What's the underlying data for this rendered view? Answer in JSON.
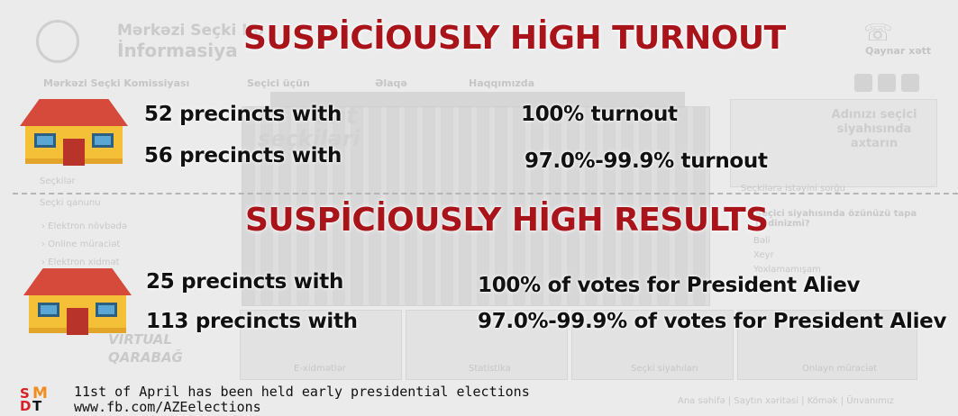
{
  "background": {
    "org_name_line1": "Mərkəzi Seçki Ko",
    "org_name_line2": "İnformasiya",
    "hotline_label": "Qaynar xətt",
    "nav": [
      "Mərkəzi Seçki Komissiyası",
      "Seçici üçün",
      "Əlaqə",
      "Haqqımızda"
    ],
    "ghost_word_1": "ent",
    "ghost_word_2": "seçkiləri",
    "side_box_text": "Adınızı seçici siyahısında axtarın",
    "side_caption": "Seçkilərə istəyini sorğu",
    "left_links": [
      "Seçkilər",
      "Seçki qanunu",
      "› Elektron növbədə",
      "› Online müraciət",
      "› Elektron xidmət"
    ],
    "poll_title": "Seçici siyahısında özünüzü tapa bildinizmi?",
    "poll_options": [
      "Bəli",
      "Xeyr",
      "Yoxlamamışam"
    ],
    "virtual_text_1": "VIRTUAL",
    "virtual_text_2": "QARABAĞ",
    "tile_labels": [
      "E-xidmətlər",
      "Statistika",
      "Seçki siyahıları",
      "Onlayn müraciət"
    ],
    "footer_links": "Ana səhifə  |  Saytın xəritəsi  |  Kömək  |  Ünvanımız"
  },
  "sections": {
    "turnout": {
      "title": "SUSPİCİOUSLY HİGH TURNOUT",
      "rows": [
        {
          "count_text": "52 precincts with",
          "value_text": "100% turnout"
        },
        {
          "count_text": "56 precincts with",
          "value_text": "97.0%-99.9% turnout"
        }
      ]
    },
    "results": {
      "title": "SUSPİCİOUSLY HİGH RESULTS",
      "rows": [
        {
          "count_text": "25 precincts with",
          "value_text": "100% of votes for President Aliev"
        },
        {
          "count_text": "113 precincts with",
          "value_text": "97.0%-99.9% of votes for President Aliev"
        }
      ]
    }
  },
  "footer": {
    "logo_letters": {
      "S": "S",
      "M": "M",
      "D": "D",
      "T": "T"
    },
    "line1": "11st of April has been held early presidential elections",
    "line2": "www.fb.com/AZEelections"
  },
  "colors": {
    "heading_red": "#a9141b",
    "house_roof": "#d64a3c",
    "house_wall": "#f4c038",
    "house_window": "#5aa7d6",
    "logo_red": "#d62027",
    "logo_orange": "#f28c1e",
    "logo_black": "#111111"
  },
  "icons": [
    "house-icon",
    "smdt-logo"
  ]
}
